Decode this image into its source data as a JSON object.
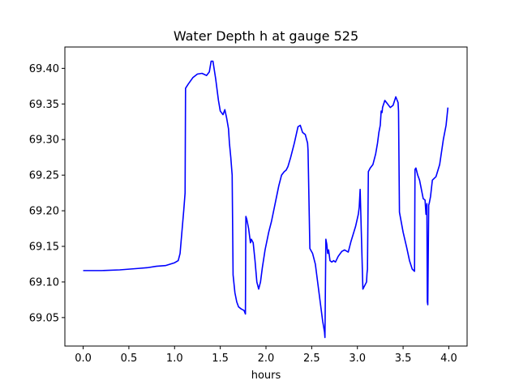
{
  "chart_data": {
    "type": "line",
    "title": "Water Depth h at gauge 525",
    "xlabel": "hours",
    "ylabel": "",
    "xlim": [
      -0.2,
      4.2
    ],
    "ylim": [
      69.01,
      69.43
    ],
    "xticks": [
      0.0,
      0.5,
      1.0,
      1.5,
      2.0,
      2.5,
      3.0,
      3.5,
      4.0
    ],
    "xtick_labels": [
      "0.0",
      "0.5",
      "1.0",
      "1.5",
      "2.0",
      "2.5",
      "3.0",
      "3.5",
      "4.0"
    ],
    "yticks": [
      69.05,
      69.1,
      69.15,
      69.2,
      69.25,
      69.3,
      69.35,
      69.4
    ],
    "ytick_labels": [
      "69.05",
      "69.10",
      "69.15",
      "69.20",
      "69.25",
      "69.30",
      "69.35",
      "69.40"
    ],
    "grid": false,
    "series": [
      {
        "color": "#0000ff",
        "x": [
          0.0,
          0.2,
          0.4,
          0.6,
          0.7,
          0.8,
          0.9,
          0.95,
          1.0,
          1.04,
          1.06,
          1.08,
          1.1,
          1.115,
          1.12,
          1.15,
          1.2,
          1.25,
          1.3,
          1.35,
          1.38,
          1.4,
          1.42,
          1.45,
          1.48,
          1.5,
          1.53,
          1.55,
          1.57,
          1.59,
          1.6,
          1.615,
          1.63,
          1.64,
          1.66,
          1.68,
          1.7,
          1.73,
          1.76,
          1.775,
          1.78,
          1.79,
          1.81,
          1.83,
          1.84,
          1.86,
          1.88,
          1.9,
          1.92,
          1.94,
          1.96,
          1.99,
          2.03,
          2.06,
          2.1,
          2.14,
          2.17,
          2.2,
          2.22,
          2.24,
          2.27,
          2.31,
          2.35,
          2.375,
          2.4,
          2.43,
          2.455,
          2.46,
          2.48,
          2.51,
          2.54,
          2.57,
          2.6,
          2.62,
          2.64,
          2.645,
          2.655,
          2.665,
          2.675,
          2.685,
          2.7,
          2.72,
          2.74,
          2.76,
          2.79,
          2.83,
          2.86,
          2.9,
          2.93,
          2.98,
          3.01,
          3.02,
          3.03,
          3.06,
          3.1,
          3.105,
          3.11,
          3.12,
          3.14,
          3.17,
          3.2,
          3.22,
          3.235,
          3.25,
          3.26,
          3.27,
          3.275,
          3.3,
          3.33,
          3.36,
          3.39,
          3.42,
          3.445,
          3.45,
          3.46,
          3.5,
          3.54,
          3.57,
          3.6,
          3.625,
          3.63,
          3.64,
          3.66,
          3.68,
          3.7,
          3.72,
          3.74,
          3.75,
          3.76,
          3.765,
          3.77,
          3.78,
          3.785,
          3.8,
          3.82,
          3.86,
          3.9,
          3.94,
          3.97,
          3.99
        ],
        "y": [
          69.116,
          69.116,
          69.117,
          69.119,
          69.12,
          69.122,
          69.123,
          69.125,
          69.127,
          69.13,
          69.14,
          69.17,
          69.2,
          69.225,
          69.372,
          69.378,
          69.387,
          69.392,
          69.393,
          69.39,
          69.395,
          69.41,
          69.41,
          69.385,
          69.355,
          69.34,
          69.335,
          69.342,
          69.33,
          69.315,
          69.295,
          69.275,
          69.25,
          69.11,
          69.085,
          69.072,
          69.065,
          69.062,
          69.06,
          69.055,
          69.192,
          69.188,
          69.175,
          69.155,
          69.16,
          69.155,
          69.13,
          69.1,
          69.09,
          69.1,
          69.12,
          69.145,
          69.17,
          69.185,
          69.21,
          69.235,
          69.25,
          69.255,
          69.257,
          69.262,
          69.275,
          69.295,
          69.318,
          69.32,
          69.31,
          69.307,
          69.295,
          69.285,
          69.147,
          69.14,
          69.125,
          69.095,
          69.065,
          69.045,
          69.03,
          69.022,
          69.16,
          69.153,
          69.14,
          69.145,
          69.13,
          69.128,
          69.13,
          69.128,
          69.136,
          69.143,
          69.145,
          69.142,
          69.157,
          69.178,
          69.195,
          69.205,
          69.23,
          69.09,
          69.1,
          69.112,
          69.118,
          69.255,
          69.26,
          69.265,
          69.28,
          69.295,
          69.31,
          69.32,
          69.34,
          69.338,
          69.345,
          69.355,
          69.35,
          69.345,
          69.348,
          69.36,
          69.352,
          69.34,
          69.198,
          69.17,
          69.148,
          69.13,
          69.118,
          69.115,
          69.258,
          69.26,
          69.25,
          69.243,
          69.23,
          69.217,
          69.215,
          69.195,
          69.21,
          69.072,
          69.068,
          69.208,
          69.21,
          69.22,
          69.243,
          69.248,
          69.265,
          69.3,
          69.32,
          69.345
        ]
      }
    ]
  }
}
